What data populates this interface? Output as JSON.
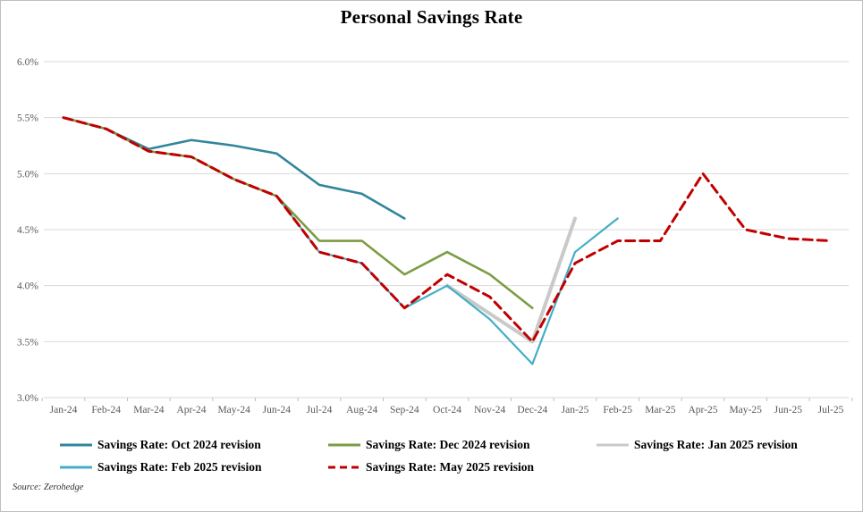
{
  "title": "Personal Savings Rate",
  "source_note": "Source: Zerohedge",
  "chart_data": {
    "type": "line",
    "title": "Personal Savings Rate",
    "x_categories": [
      "Jan-24",
      "Feb-24",
      "Mar-24",
      "Apr-24",
      "May-24",
      "Jun-24",
      "Jul-24",
      "Aug-24",
      "Sep-24",
      "Oct-24",
      "Nov-24",
      "Dec-24",
      "Jan-25",
      "Feb-25",
      "Mar-25",
      "Apr-25",
      "May-25",
      "Jun-25",
      "Jul-25"
    ],
    "y_tick_labels": [
      "6.0%",
      "5.5%",
      "5.0%",
      "4.5%",
      "4.0%",
      "3.5%",
      "3.0%"
    ],
    "y_tick_values": [
      6.0,
      5.5,
      5.0,
      4.5,
      4.0,
      3.5,
      3.0
    ],
    "ylim": [
      3.0,
      6.0
    ],
    "grid": "horizontal",
    "grid_color": "#D9D9D9",
    "axis_label_color": "#595959",
    "legend_position": "bottom",
    "series": [
      {
        "name": "Savings Rate: Oct 2024 revision",
        "color": "#31859C",
        "style": "solid",
        "width": 2.6,
        "start_index": 0,
        "values": [
          5.5,
          5.4,
          5.22,
          5.3,
          5.25,
          5.18,
          4.9,
          4.82,
          4.6
        ]
      },
      {
        "name": "Savings Rate: Dec 2024 revision",
        "color": "#7D9B43",
        "style": "solid",
        "width": 2.6,
        "start_index": 0,
        "values": [
          5.5,
          5.4,
          5.2,
          5.15,
          4.95,
          4.8,
          4.4,
          4.4,
          4.1,
          4.3,
          4.1,
          3.8
        ]
      },
      {
        "name": "Savings Rate: Jan 2025 revision",
        "color": "#C9C9C9",
        "style": "solid",
        "width": 4,
        "start_index": 9,
        "values": [
          4.0,
          3.75,
          3.5,
          4.6
        ]
      },
      {
        "name": "Savings Rate: Feb 2025 revision",
        "color": "#44AEC6",
        "style": "solid",
        "width": 2.2,
        "start_index": 5,
        "values": [
          4.8,
          4.3,
          4.2,
          3.8,
          4.0,
          3.7,
          3.3,
          4.3,
          4.6
        ]
      },
      {
        "name": "Savings Rate: May 2025 revision",
        "color": "#C00000",
        "style": "dashed",
        "width": 3,
        "start_index": 0,
        "values": [
          5.5,
          5.4,
          5.2,
          5.15,
          4.95,
          4.8,
          4.3,
          4.2,
          3.8,
          4.1,
          3.9,
          3.5,
          4.2,
          4.4,
          4.4,
          5.0,
          4.5,
          4.42,
          4.4
        ]
      }
    ],
    "legend_rows": [
      [
        0,
        1,
        2
      ],
      [
        3,
        4
      ]
    ]
  }
}
